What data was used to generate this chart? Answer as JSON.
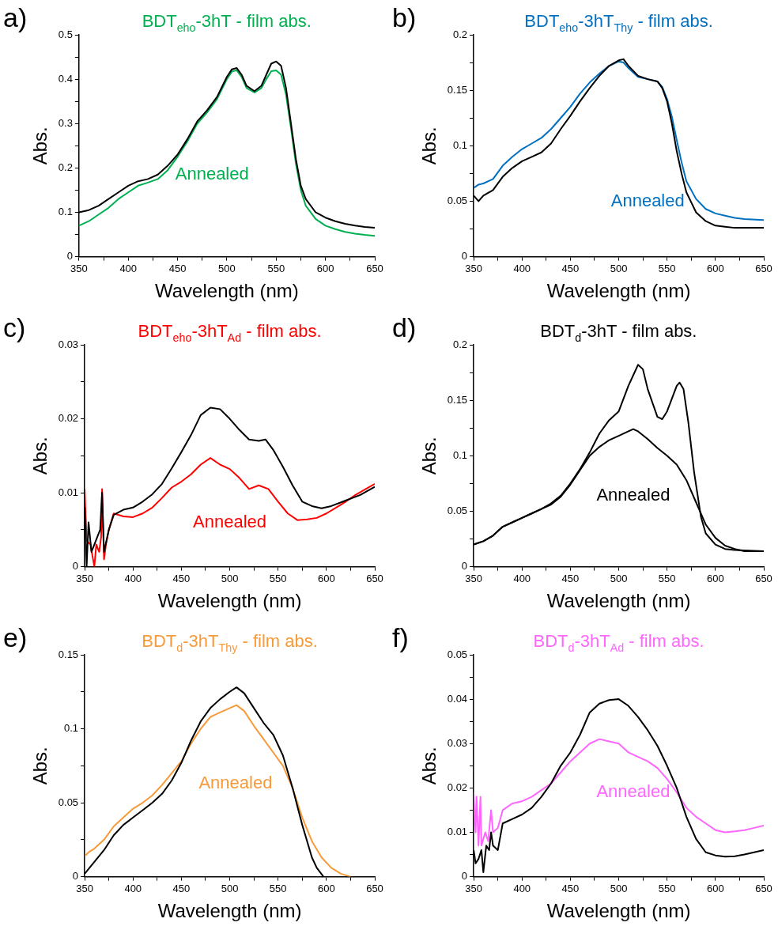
{
  "chart_data": [
    {
      "type": "line",
      "title": "BDT$_{eho}$-3hT - film abs.",
      "xlabel": "Wavelength (nm)",
      "ylabel": "Abs.",
      "marker": "none",
      "grid": false,
      "legend": false,
      "xlim": [
        350,
        650
      ],
      "xticks": [
        350,
        {
          "value": 375,
          "label": null
        },
        400,
        {
          "value": 425,
          "label": null
        },
        450,
        {
          "value": 475,
          "label": null
        },
        500,
        {
          "value": 525,
          "label": null
        },
        550,
        {
          "value": 575,
          "label": null
        },
        600,
        {
          "value": 625,
          "label": null
        },
        650
      ],
      "ylim": [
        0,
        0.5
      ],
      "yticks": [
        {
          "value": 0,
          "label": "0"
        },
        {
          "value": 0.05,
          "label": null
        },
        0.1,
        {
          "value": 0.15,
          "label": null
        },
        0.2,
        {
          "value": 0.25,
          "label": null
        },
        0.3,
        {
          "value": 0.35,
          "label": null
        },
        0.4,
        {
          "value": 0.45,
          "label": null
        },
        0.5
      ],
      "annotations": [
        "a)"
      ],
      "series": [
        {
          "color": "#000000",
          "x": [
            350,
            360,
            370,
            380,
            390,
            400,
            410,
            420,
            430,
            440,
            450,
            460,
            470,
            480,
            490,
            500,
            505,
            510,
            515,
            520,
            528,
            535,
            540,
            545,
            550,
            555,
            560,
            565,
            570,
            575,
            580,
            590,
            600,
            610,
            620,
            630,
            640,
            650
          ],
          "values": [
            0.1,
            0.105,
            0.115,
            0.13,
            0.145,
            0.16,
            0.17,
            0.175,
            0.185,
            0.205,
            0.23,
            0.265,
            0.305,
            0.33,
            0.36,
            0.405,
            0.422,
            0.425,
            0.41,
            0.385,
            0.373,
            0.385,
            0.41,
            0.435,
            0.44,
            0.43,
            0.38,
            0.3,
            0.22,
            0.16,
            0.13,
            0.1,
            0.088,
            0.08,
            0.074,
            0.07,
            0.067,
            0.065
          ]
        },
        {
          "name": "Annealed",
          "color": "#00b050",
          "x": [
            350,
            360,
            370,
            380,
            390,
            400,
            410,
            420,
            430,
            440,
            450,
            460,
            470,
            480,
            490,
            500,
            505,
            510,
            515,
            520,
            528,
            535,
            540,
            545,
            550,
            555,
            560,
            565,
            570,
            575,
            580,
            590,
            600,
            610,
            620,
            630,
            640,
            650
          ],
          "values": [
            0.07,
            0.08,
            0.095,
            0.11,
            0.13,
            0.145,
            0.16,
            0.167,
            0.175,
            0.195,
            0.225,
            0.26,
            0.3,
            0.325,
            0.355,
            0.4,
            0.417,
            0.42,
            0.405,
            0.38,
            0.37,
            0.38,
            0.4,
            0.418,
            0.42,
            0.41,
            0.365,
            0.29,
            0.21,
            0.15,
            0.115,
            0.085,
            0.07,
            0.062,
            0.056,
            0.052,
            0.049,
            0.047
          ]
        }
      ]
    },
    {
      "type": "line",
      "title": "BDT$_{eho}$-3hT$_{Thy}$ - film abs.",
      "xlabel": "Wavelength (nm)",
      "ylabel": "Abs.",
      "marker": "none",
      "grid": false,
      "legend": false,
      "xlim": [
        350,
        650
      ],
      "xticks": [
        350,
        {
          "value": 375,
          "label": null
        },
        400,
        {
          "value": 425,
          "label": null
        },
        450,
        {
          "value": 475,
          "label": null
        },
        500,
        {
          "value": 525,
          "label": null
        },
        550,
        {
          "value": 575,
          "label": null
        },
        600,
        {
          "value": 625,
          "label": null
        },
        650
      ],
      "ylim": [
        0,
        0.2
      ],
      "yticks": [
        {
          "value": 0,
          "label": "0"
        },
        {
          "value": 0.025,
          "label": null
        },
        0.05,
        {
          "value": 0.075,
          "label": null
        },
        0.1,
        {
          "value": 0.125,
          "label": null
        },
        0.15,
        {
          "value": 0.175,
          "label": null
        },
        0.2
      ],
      "annotations": [
        "b)"
      ],
      "series": [
        {
          "color": "#000000",
          "x": [
            350,
            355,
            360,
            370,
            380,
            390,
            400,
            410,
            420,
            430,
            440,
            450,
            460,
            470,
            480,
            490,
            500,
            505,
            510,
            520,
            530,
            540,
            545,
            550,
            555,
            560,
            565,
            570,
            580,
            590,
            600,
            610,
            620,
            630,
            650
          ],
          "values": [
            0.055,
            0.05,
            0.055,
            0.06,
            0.072,
            0.08,
            0.086,
            0.09,
            0.094,
            0.102,
            0.115,
            0.127,
            0.14,
            0.152,
            0.163,
            0.172,
            0.177,
            0.178,
            0.172,
            0.163,
            0.16,
            0.158,
            0.152,
            0.14,
            0.12,
            0.095,
            0.075,
            0.058,
            0.04,
            0.032,
            0.028,
            0.027,
            0.026,
            0.026,
            0.026
          ]
        },
        {
          "name": "Annealed",
          "color": "#0070c0",
          "x": [
            350,
            355,
            360,
            370,
            380,
            390,
            400,
            410,
            420,
            430,
            440,
            450,
            460,
            470,
            480,
            490,
            500,
            505,
            510,
            520,
            530,
            540,
            545,
            550,
            555,
            560,
            565,
            570,
            580,
            590,
            600,
            610,
            620,
            630,
            650
          ],
          "values": [
            0.062,
            0.065,
            0.066,
            0.07,
            0.082,
            0.09,
            0.097,
            0.102,
            0.107,
            0.115,
            0.125,
            0.135,
            0.147,
            0.157,
            0.165,
            0.172,
            0.176,
            0.175,
            0.17,
            0.162,
            0.16,
            0.158,
            0.153,
            0.142,
            0.126,
            0.105,
            0.085,
            0.068,
            0.052,
            0.043,
            0.039,
            0.037,
            0.035,
            0.034,
            0.033
          ]
        }
      ]
    },
    {
      "type": "line",
      "title": "BDT$_{eho}$-3hT$_{Ad}$ - film abs.",
      "xlabel": "Wavelength (nm)",
      "ylabel": "Abs.",
      "marker": "none",
      "grid": false,
      "legend": false,
      "xlim": [
        350,
        650
      ],
      "xticks": [
        350,
        {
          "value": 375,
          "label": null
        },
        400,
        {
          "value": 425,
          "label": null
        },
        450,
        {
          "value": 475,
          "label": null
        },
        500,
        {
          "value": 525,
          "label": null
        },
        550,
        {
          "value": 575,
          "label": null
        },
        600,
        {
          "value": 625,
          "label": null
        },
        650
      ],
      "ylim": [
        0,
        0.03
      ],
      "yticks": [
        {
          "value": 0,
          "label": "0"
        },
        {
          "value": 0.005,
          "label": null
        },
        0.01,
        {
          "value": 0.015,
          "label": null
        },
        0.02,
        {
          "value": 0.025,
          "label": null
        },
        0.03
      ],
      "annotations": [
        "c)"
      ],
      "series": [
        {
          "color": "#000000",
          "x": [
            350,
            352,
            354,
            357,
            360,
            363,
            366,
            368,
            370,
            375,
            380,
            390,
            400,
            410,
            420,
            430,
            440,
            450,
            460,
            470,
            480,
            490,
            500,
            510,
            520,
            530,
            537,
            545,
            555,
            565,
            575,
            585,
            595,
            605,
            615,
            625,
            635,
            650
          ],
          "values": [
            0.008,
            0,
            0.006,
            0.002,
            0.003,
            0.004,
            0.005,
            0.01,
            0.002,
            0.005,
            0.007,
            0.0077,
            0.008,
            0.0088,
            0.0098,
            0.0112,
            0.0133,
            0.0155,
            0.0178,
            0.0205,
            0.0215,
            0.0213,
            0.02,
            0.0185,
            0.0172,
            0.017,
            0.0172,
            0.0158,
            0.0135,
            0.011,
            0.0088,
            0.0082,
            0.0079,
            0.0082,
            0.0087,
            0.0092,
            0.0097,
            0.0108
          ]
        },
        {
          "name": "Annealed",
          "color": "#ff0000",
          "x": [
            350,
            352,
            356,
            358,
            360,
            362,
            365,
            367,
            368,
            370,
            372,
            375,
            380,
            390,
            400,
            410,
            420,
            430,
            440,
            450,
            460,
            470,
            480,
            490,
            500,
            510,
            520,
            530,
            540,
            550,
            560,
            570,
            580,
            590,
            600,
            610,
            620,
            630,
            650
          ],
          "values": [
            0.0105,
            0.0035,
            0.003,
            0.0015,
            0,
            0.003,
            0.002,
            0.004,
            0.0105,
            0.001,
            0.003,
            0.005,
            0.0072,
            0.0068,
            0.0067,
            0.0072,
            0.008,
            0.0093,
            0.0107,
            0.0115,
            0.0125,
            0.0138,
            0.0147,
            0.0138,
            0.0132,
            0.012,
            0.0105,
            0.011,
            0.0105,
            0.0088,
            0.0072,
            0.0063,
            0.0064,
            0.0066,
            0.0072,
            0.008,
            0.0088,
            0.0097,
            0.0112
          ]
        }
      ]
    },
    {
      "type": "line",
      "title": "BDT$_{d}$-3hT - film abs.",
      "xlabel": "Wavelength (nm)",
      "ylabel": "Abs.",
      "marker": "none",
      "grid": false,
      "legend": false,
      "xlim": [
        350,
        650
      ],
      "xticks": [
        350,
        {
          "value": 375,
          "label": null
        },
        400,
        {
          "value": 425,
          "label": null
        },
        450,
        {
          "value": 475,
          "label": null
        },
        500,
        {
          "value": 525,
          "label": null
        },
        550,
        {
          "value": 575,
          "label": null
        },
        600,
        {
          "value": 625,
          "label": null
        },
        650
      ],
      "ylim": [
        0,
        0.2
      ],
      "yticks": [
        {
          "value": 0,
          "label": "0"
        },
        {
          "value": 0.025,
          "label": null
        },
        0.05,
        {
          "value": 0.075,
          "label": null
        },
        0.1,
        {
          "value": 0.125,
          "label": null
        },
        0.15,
        {
          "value": 0.175,
          "label": null
        },
        0.2
      ],
      "annotations": [
        "d)"
      ],
      "series": [
        {
          "color": "#000000",
          "x": [
            350,
            360,
            370,
            380,
            390,
            400,
            410,
            420,
            430,
            440,
            450,
            460,
            470,
            480,
            490,
            500,
            510,
            520,
            525,
            530,
            540,
            545,
            550,
            560,
            563,
            567,
            572,
            578,
            585,
            590,
            600,
            610,
            620,
            650
          ],
          "values": [
            0.02,
            0.023,
            0.028,
            0.036,
            0.04,
            0.044,
            0.048,
            0.052,
            0.057,
            0.064,
            0.075,
            0.088,
            0.103,
            0.12,
            0.132,
            0.14,
            0.163,
            0.182,
            0.178,
            0.16,
            0.135,
            0.133,
            0.14,
            0.163,
            0.166,
            0.16,
            0.13,
            0.085,
            0.045,
            0.03,
            0.02,
            0.016,
            0.015,
            0.014
          ]
        },
        {
          "name": "Annealed",
          "color": "#000000",
          "x": [
            350,
            360,
            370,
            380,
            390,
            400,
            410,
            420,
            430,
            440,
            450,
            460,
            470,
            480,
            490,
            500,
            510,
            515,
            520,
            530,
            540,
            550,
            560,
            570,
            580,
            590,
            600,
            610,
            620,
            630,
            650
          ],
          "values": [
            0.02,
            0.023,
            0.028,
            0.036,
            0.04,
            0.044,
            0.048,
            0.052,
            0.056,
            0.063,
            0.074,
            0.087,
            0.1,
            0.108,
            0.114,
            0.118,
            0.122,
            0.124,
            0.122,
            0.115,
            0.107,
            0.1,
            0.092,
            0.078,
            0.058,
            0.038,
            0.026,
            0.019,
            0.016,
            0.014,
            0.014
          ]
        }
      ]
    },
    {
      "type": "line",
      "title": "BDT$_{d}$-3hT$_{Thy}$ - film abs.",
      "xlabel": "Wavelength (nm)",
      "ylabel": "Abs.",
      "marker": "none",
      "grid": false,
      "legend": false,
      "xlim": [
        350,
        650
      ],
      "xticks": [
        350,
        {
          "value": 375,
          "label": null
        },
        400,
        {
          "value": 425,
          "label": null
        },
        450,
        {
          "value": 475,
          "label": null
        },
        500,
        {
          "value": 525,
          "label": null
        },
        550,
        {
          "value": 575,
          "label": null
        },
        600,
        {
          "value": 625,
          "label": null
        },
        650
      ],
      "ylim": [
        0,
        0.15
      ],
      "yticks": [
        {
          "value": 0,
          "label": "0"
        },
        {
          "value": 0.025,
          "label": null
        },
        0.05,
        {
          "value": 0.075,
          "label": null
        },
        0.1,
        {
          "value": 0.125,
          "label": null
        },
        0.15
      ],
      "annotations": [
        "e)"
      ],
      "series": [
        {
          "color": "#000000",
          "x": [
            350,
            355,
            360,
            370,
            380,
            390,
            400,
            410,
            420,
            430,
            440,
            450,
            460,
            470,
            480,
            490,
            500,
            507,
            515,
            525,
            535,
            545,
            555,
            565,
            575,
            585,
            590,
            597
          ],
          "values": [
            0.002,
            0.006,
            0.01,
            0.018,
            0.028,
            0.035,
            0.04,
            0.045,
            0.05,
            0.056,
            0.065,
            0.077,
            0.092,
            0.105,
            0.114,
            0.12,
            0.125,
            0.128,
            0.124,
            0.114,
            0.104,
            0.096,
            0.082,
            0.06,
            0.035,
            0.013,
            0.006,
            0
          ]
        },
        {
          "name": "Annealed",
          "color": "#f79a3a",
          "x": [
            350,
            355,
            360,
            370,
            380,
            390,
            400,
            410,
            420,
            430,
            440,
            450,
            460,
            470,
            480,
            490,
            500,
            507,
            515,
            525,
            535,
            545,
            555,
            565,
            575,
            585,
            595,
            605,
            615,
            625
          ],
          "values": [
            0.014,
            0.017,
            0.019,
            0.025,
            0.034,
            0.04,
            0.046,
            0.05,
            0.055,
            0.062,
            0.07,
            0.078,
            0.09,
            0.1,
            0.108,
            0.111,
            0.114,
            0.116,
            0.112,
            0.102,
            0.093,
            0.084,
            0.075,
            0.06,
            0.04,
            0.024,
            0.013,
            0.006,
            0.002,
            0
          ]
        }
      ]
    },
    {
      "type": "line",
      "title": "BDT$_{d}$-3hT$_{Ad}$ - film abs.",
      "xlabel": "Wavelength (nm)",
      "ylabel": "Abs.",
      "marker": "none",
      "grid": false,
      "legend": false,
      "xlim": [
        350,
        650
      ],
      "xticks": [
        350,
        {
          "value": 375,
          "label": null
        },
        400,
        {
          "value": 425,
          "label": null
        },
        450,
        {
          "value": 475,
          "label": null
        },
        500,
        {
          "value": 525,
          "label": null
        },
        550,
        {
          "value": 575,
          "label": null
        },
        600,
        {
          "value": 625,
          "label": null
        },
        650
      ],
      "ylim": [
        0,
        0.05
      ],
      "yticks": [
        {
          "value": 0,
          "label": "0"
        },
        {
          "value": 0.005,
          "label": null
        },
        0.01,
        {
          "value": 0.015,
          "label": null
        },
        0.02,
        {
          "value": 0.025,
          "label": null
        },
        0.03,
        {
          "value": 0.035,
          "label": null
        },
        0.04,
        {
          "value": 0.045,
          "label": null
        },
        0.05
      ],
      "annotations": [
        "f)"
      ],
      "series": [
        {
          "color": "#000000",
          "x": [
            350,
            352,
            355,
            358,
            360,
            363,
            366,
            368,
            370,
            375,
            380,
            390,
            400,
            410,
            420,
            430,
            440,
            450,
            460,
            470,
            480,
            490,
            500,
            510,
            520,
            530,
            540,
            550,
            560,
            570,
            580,
            590,
            600,
            610,
            620,
            630,
            640,
            650
          ],
          "values": [
            0.006,
            0.003,
            0.004,
            0.006,
            0.001,
            0.007,
            0.006,
            0.01,
            0.007,
            0.006,
            0.012,
            0.013,
            0.014,
            0.0155,
            0.018,
            0.021,
            0.025,
            0.028,
            0.032,
            0.037,
            0.039,
            0.0398,
            0.04,
            0.0385,
            0.036,
            0.033,
            0.0295,
            0.025,
            0.02,
            0.0135,
            0.0085,
            0.0055,
            0.0048,
            0.0045,
            0.0046,
            0.005,
            0.0055,
            0.006
          ]
        },
        {
          "name": "Annealed",
          "color": "#ff66ff",
          "x": [
            350,
            352,
            353,
            355,
            357,
            358,
            362,
            365,
            368,
            370,
            375,
            380,
            390,
            400,
            410,
            420,
            430,
            440,
            450,
            460,
            470,
            480,
            490,
            500,
            510,
            520,
            530,
            540,
            550,
            560,
            570,
            580,
            590,
            600,
            610,
            620,
            630,
            640,
            650
          ],
          "values": [
            0.019,
            0.01,
            0.018,
            0.007,
            0.018,
            0.007,
            0.01,
            0.008,
            0.015,
            0.01,
            0.011,
            0.015,
            0.0165,
            0.017,
            0.018,
            0.0195,
            0.021,
            0.0235,
            0.026,
            0.028,
            0.03,
            0.031,
            0.0305,
            0.03,
            0.028,
            0.027,
            0.026,
            0.0245,
            0.022,
            0.019,
            0.0155,
            0.0135,
            0.012,
            0.0105,
            0.01,
            0.0102,
            0.0105,
            0.011,
            0.0115
          ]
        }
      ]
    }
  ]
}
